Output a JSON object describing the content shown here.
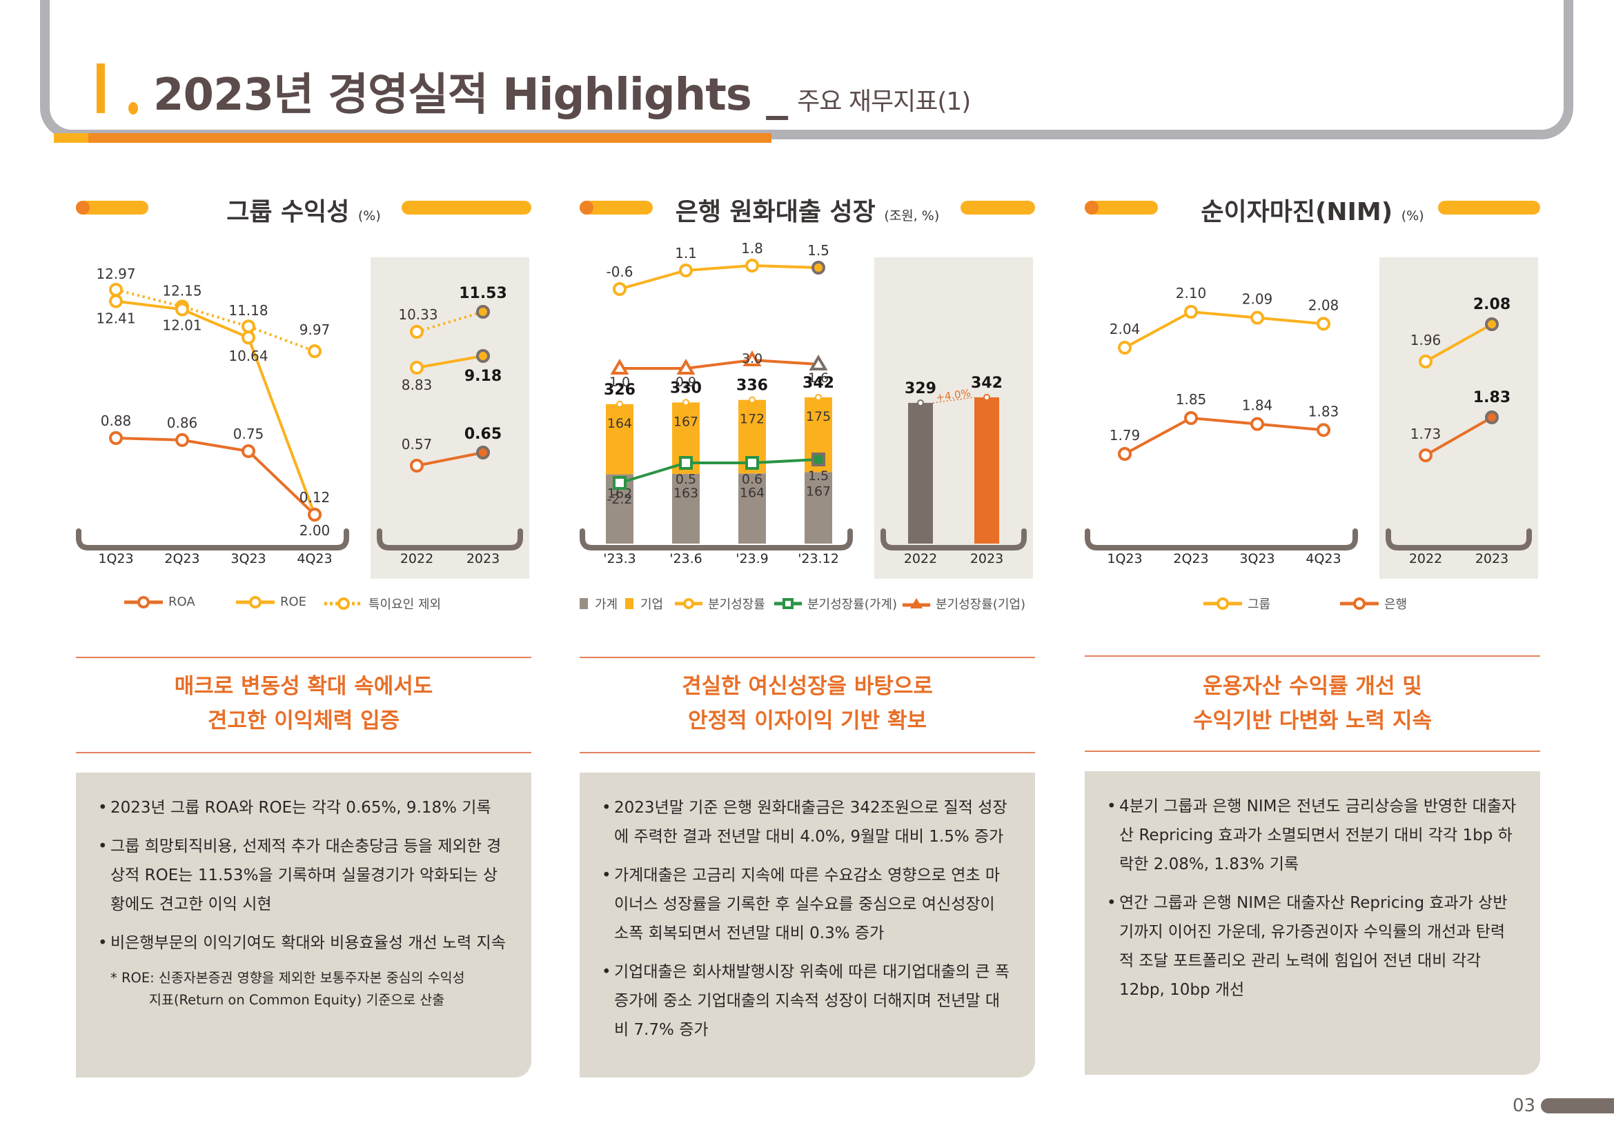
{
  "page": {
    "title": "2023년 경영실적 Highlights _",
    "subtitle": "주요 재무지표(1)",
    "page_number": "03",
    "colors": {
      "orange": "#e86f27",
      "yellow": "#fbb11e",
      "gray_brown": "#7a6f68",
      "green": "#2a9444",
      "panel": "#edeae4",
      "textbox": "#ded9cf"
    }
  },
  "sections": [
    {
      "title": "그룹 수익성",
      "unit": "(%)",
      "legend": [
        {
          "label": "ROA",
          "icon": "line-circle-marker-orange"
        },
        {
          "label": "ROE",
          "icon": "line-circle-marker-yellow"
        },
        {
          "label": "특이요인 제외",
          "icon": "dotted-line-circle-marker-yellow"
        }
      ],
      "headline": [
        "매크로 변동성 확대 속에서도",
        "견고한 이익체력 입증"
      ],
      "bullets": [
        "2023년 그룹 ROA와 ROE는 각각 0.65%, 9.18% 기록",
        "그룹 희망퇴직비용, 선제적 추가 대손충당금 등을 제외한 경상적 ROE는 11.53%을 기록하며 실물경기가 악화되는 상황에도 견고한 이익 시현",
        "비은행부문의 이익기여도 확대와 비용효율성 개선 노력 지속"
      ],
      "note_line1": "* ROE: 신종자본증권 영향을 제외한 보통주자본 중심의 수익성",
      "note_line2": "지표(Return on Common Equity) 기준으로 산출"
    },
    {
      "title": "은행 원화대출 성장",
      "unit": "(조원, %)",
      "legend": [
        {
          "label": "가계",
          "icon": "square-gray"
        },
        {
          "label": "기업",
          "icon": "square-yellow"
        },
        {
          "label": "분기성장률",
          "icon": "line-circle-marker-yellow"
        },
        {
          "label": "분기성장률(가계)",
          "icon": "line-square-marker-green"
        },
        {
          "label": "분기성장률(기업)",
          "icon": "line-triangle-marker-orange"
        }
      ],
      "headline": [
        "견실한 여신성장을 바탕으로",
        "안정적 이자이익 기반 확보"
      ],
      "bullets": [
        "2023년말 기준 은행 원화대출금은 342조원으로 질적 성장에 주력한 결과 전년말 대비 4.0%, 9월말 대비 1.5% 증가",
        "가계대출은 고금리 지속에 따른 수요감소 영향으로 연초 마이너스 성장률을 기록한 후 실수요를 중심으로 여신성장이 소폭 회복되면서 전년말 대비 0.3% 증가",
        "기업대출은 회사채발행시장 위축에 따른 대기업대출의 큰 폭 증가에 중소 기업대출의 지속적 성장이 더해지며 전년말 대비 7.7% 증가"
      ]
    },
    {
      "title": "순이자마진(NIM)",
      "unit": "(%)",
      "legend": [
        {
          "label": "그룹",
          "icon": "line-circle-marker-yellow"
        },
        {
          "label": "은행",
          "icon": "line-circle-marker-orange"
        }
      ],
      "headline": [
        "운용자산 수익률 개선 및",
        "수익기반 다변화 노력 지속"
      ],
      "bullets": [
        "4분기 그룹과 은행 NIM은 전년도 금리상승을 반영한 대출자산 Repricing 효과가 소멸되면서 전분기 대비 각각 1bp 하락한 2.08%, 1.83% 기록",
        "연간 그룹과 은행 NIM은 대출자산 Repricing 효과가 상반기까지 이어진 가운데, 유가증권이자 수익률의 개선과 탄력적 조달 포트폴리오 관리 노력에 힘입어 전년 대비 각각 12bp, 10bp 개선"
      ]
    }
  ],
  "chart_data": [
    {
      "type": "line",
      "title": "그룹 수익성 (%)",
      "quarterly": {
        "categories": [
          "1Q23",
          "2Q23",
          "3Q23",
          "4Q23"
        ],
        "series": [
          {
            "name": "ROA",
            "values": [
              0.88,
              0.86,
              0.75,
              0.12
            ],
            "color": "#e86f27",
            "style": "solid"
          },
          {
            "name": "ROE",
            "values": [
              12.41,
              12.01,
              10.64,
              2.0
            ],
            "color": "#fbb11e",
            "style": "solid"
          },
          {
            "name": "특이요인 제외",
            "values": [
              12.97,
              12.15,
              11.18,
              9.97
            ],
            "color": "#fbb11e",
            "style": "dotted"
          }
        ]
      },
      "annual": {
        "categories": [
          "2022",
          "2023"
        ],
        "series": [
          {
            "name": "ROA",
            "values": [
              0.57,
              0.65
            ]
          },
          {
            "name": "ROE",
            "values": [
              8.83,
              9.18
            ]
          },
          {
            "name": "특이요인 제외",
            "values": [
              10.33,
              11.53
            ]
          }
        ]
      },
      "legend_position": "bottom"
    },
    {
      "type": "bar",
      "title": "은행 원화대출 성장 (조원, %)",
      "quarterly": {
        "categories": [
          "'23.3",
          "'23.6",
          "'23.9",
          "'23.12"
        ],
        "totals": [
          326,
          330,
          336,
          342
        ],
        "series": [
          {
            "name": "가계",
            "values": [
              162,
              163,
              164,
              167
            ],
            "color": "#9a8f85"
          },
          {
            "name": "기업",
            "values": [
              164,
              167,
              172,
              175
            ],
            "color": "#fbb11e"
          },
          {
            "name": "분기성장률",
            "values": [
              -0.6,
              1.1,
              1.8,
              1.5
            ],
            "color": "#fbb11e",
            "kind": "line"
          },
          {
            "name": "분기성장률(가계)",
            "values": [
              -2.2,
              0.5,
              0.6,
              1.5
            ],
            "color": "#2a9444",
            "kind": "line"
          },
          {
            "name": "분기성장률(기업)",
            "values": [
              1.0,
              0.9,
              3.0,
              1.6
            ],
            "color": "#e86f27",
            "kind": "line"
          }
        ]
      },
      "annual": {
        "categories": [
          "2022",
          "2023"
        ],
        "values": [
          329,
          342
        ],
        "growth_label": "+4.0%"
      },
      "legend_position": "bottom"
    },
    {
      "type": "line",
      "title": "순이자마진(NIM) (%)",
      "quarterly": {
        "categories": [
          "1Q23",
          "2Q23",
          "3Q23",
          "4Q23"
        ],
        "series": [
          {
            "name": "그룹",
            "values": [
              2.04,
              2.1,
              2.09,
              2.08
            ],
            "color": "#fbb11e"
          },
          {
            "name": "은행",
            "values": [
              1.79,
              1.85,
              1.84,
              1.83
            ],
            "color": "#e86f27"
          }
        ]
      },
      "annual": {
        "categories": [
          "2022",
          "2023"
        ],
        "series": [
          {
            "name": "그룹",
            "values": [
              1.96,
              2.08
            ]
          },
          {
            "name": "은행",
            "values": [
              1.73,
              1.83
            ]
          }
        ]
      },
      "legend_position": "bottom"
    }
  ]
}
